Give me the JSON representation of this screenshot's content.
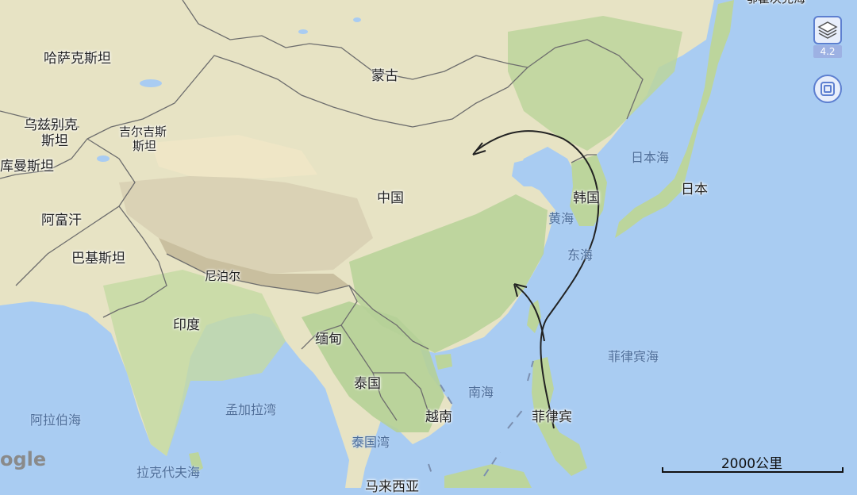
{
  "map": {
    "labels": {
      "kazakhstan": "哈萨克斯坦",
      "mongolia": "蒙古",
      "uzbekistan_1": "乌兹别克",
      "uzbekistan_2": "斯坦",
      "kyrgyzstan_1": "吉尔吉斯",
      "kyrgyzstan_2": "斯坦",
      "turkmenistan": "库曼斯坦",
      "china": "中国",
      "afghanistan": "阿富汗",
      "pakistan": "巴基斯坦",
      "nepal": "尼泊尔",
      "india": "印度",
      "myanmar": "缅甸",
      "thailand": "泰国",
      "vietnam": "越南",
      "philippines": "菲律宾",
      "korea": "韩国",
      "japan": "日本",
      "sea_of_japan": "日本海",
      "yellow_sea": "黄海",
      "east_china_sea": "东海",
      "south_china_sea": "南海",
      "philippine_sea": "菲律宾海",
      "bay_of_bengal": "孟加拉湾",
      "arabian_sea": "阿拉伯海",
      "gulf_of_thailand": "泰国湾",
      "laccadive_sea": "拉克代夫海",
      "malaysia_partial": "马来西亚",
      "top_right_partial": "鄂霍次克海"
    },
    "colors": {
      "water": "#a9ccf2",
      "land": "#e7e3c4",
      "vegetation": "#b9d39a",
      "mountain": "#d8cfb4",
      "border": "#6d6d6d",
      "route_line": "#222222",
      "control_accent": "#5d7fd0"
    }
  },
  "controls": {
    "layers_icon": "layers-icon",
    "zoom_level": "4.2",
    "locate_icon": "target-icon"
  },
  "attribution": {
    "logo_text": "ogle"
  },
  "scale_bar": {
    "label": "2000公里"
  }
}
